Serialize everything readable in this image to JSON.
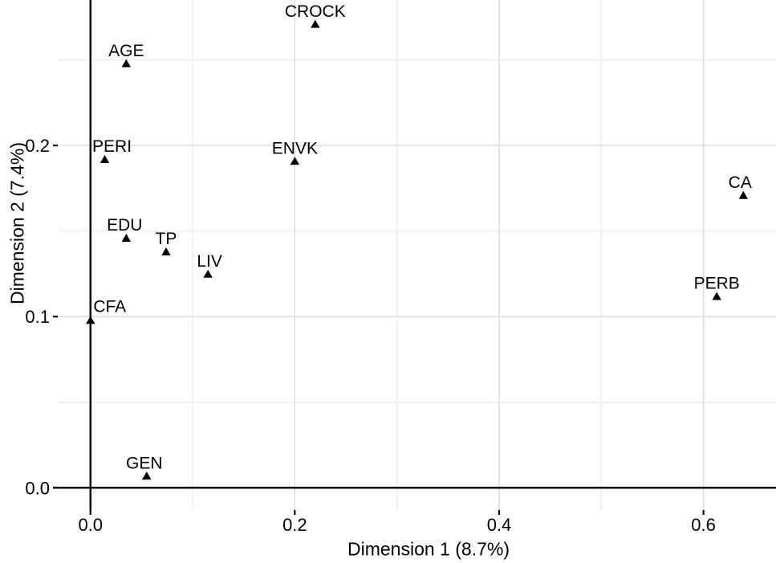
{
  "figure": {
    "background_color": "#ffffff",
    "text_color": "#000000",
    "axis_line_color": "#000000",
    "grid_major_color": "#dedede",
    "grid_minor_color": "#ebebeb",
    "marker_color": "#000000",
    "marker_symbol": "filled-triangle-up"
  },
  "chart_data": {
    "type": "scatter",
    "title": "",
    "xlabel": "Dimension 1 (8.7%)",
    "ylabel": "Dimension 2 (7.4%)",
    "xlim": [
      -0.032,
      0.671
    ],
    "ylim": [
      -0.013,
      0.285
    ],
    "grid": true,
    "legend_position": "none",
    "x_ticks": [
      {
        "value": 0.0,
        "label": "0.0"
      },
      {
        "value": 0.2,
        "label": "0.2"
      },
      {
        "value": 0.4,
        "label": "0.4"
      },
      {
        "value": 0.6,
        "label": "0.6"
      }
    ],
    "y_ticks": [
      {
        "value": 0.0,
        "label": "0.0"
      },
      {
        "value": 0.1,
        "label": "0.1"
      },
      {
        "value": 0.2,
        "label": "0.2"
      }
    ],
    "x_grid_major": [
      0.2,
      0.4,
      0.6
    ],
    "x_grid_minor": [
      0.1,
      0.3,
      0.5
    ],
    "y_grid_major": [
      0.1,
      0.2
    ],
    "y_grid_minor": [
      0.05,
      0.15,
      0.25
    ],
    "origin_lines": {
      "vline_x": 0.0,
      "hline_y": 0.0
    },
    "points": [
      {
        "label": "CROCK",
        "x": 0.22,
        "y": 0.271
      },
      {
        "label": "AGE",
        "x": 0.035,
        "y": 0.248
      },
      {
        "label": "PERI",
        "x": 0.014,
        "y": 0.192,
        "label_dx": 9
      },
      {
        "label": "ENVK",
        "x": 0.2,
        "y": 0.191
      },
      {
        "label": "CA",
        "x": 0.639,
        "y": 0.171,
        "label_dx": -4
      },
      {
        "label": "EDU",
        "x": 0.035,
        "y": 0.146,
        "label_dx": -2
      },
      {
        "label": "TP",
        "x": 0.074,
        "y": 0.138
      },
      {
        "label": "LIV",
        "x": 0.115,
        "y": 0.125,
        "label_dx": 2
      },
      {
        "label": "PERB",
        "x": 0.613,
        "y": 0.112
      },
      {
        "label": "CFA",
        "x": 0.0,
        "y": 0.098,
        "label_dx": 24,
        "label_dy": -1
      },
      {
        "label": "GEN",
        "x": 0.055,
        "y": 0.007,
        "label_dx": -3
      }
    ]
  }
}
